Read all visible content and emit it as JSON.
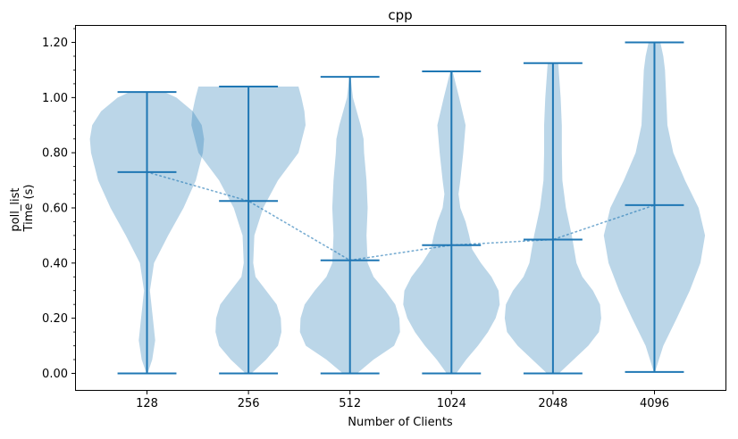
{
  "chart_data": {
    "type": "violin",
    "title": "cpp",
    "xlabel": "Number of Clients",
    "ylabel_lines": [
      "poll_list",
      "Time (s)"
    ],
    "categories": [
      "128",
      "256",
      "512",
      "1024",
      "2048",
      "4096"
    ],
    "ylim": [
      -0.06,
      1.26
    ],
    "yticks": [
      0.0,
      0.2,
      0.4,
      0.6,
      0.8,
      1.0,
      1.2
    ],
    "ytick_labels": [
      "0.00",
      "0.20",
      "0.40",
      "0.60",
      "0.80",
      "1.00",
      "1.20"
    ],
    "grid": false,
    "legend": "none",
    "colors": {
      "body": "#1f77b4",
      "body_alpha": 0.3,
      "lines": "#1f77b4",
      "mean_line": "#1f77b4"
    },
    "series": [
      {
        "category": "128",
        "min": 0.0,
        "max": 1.02,
        "mean": 0.73,
        "profile": [
          [
            0.0,
            0.01
          ],
          [
            0.05,
            0.09
          ],
          [
            0.12,
            0.14
          ],
          [
            0.2,
            0.1
          ],
          [
            0.3,
            0.05
          ],
          [
            0.4,
            0.12
          ],
          [
            0.5,
            0.36
          ],
          [
            0.6,
            0.62
          ],
          [
            0.7,
            0.83
          ],
          [
            0.8,
            0.95
          ],
          [
            0.85,
            0.97
          ],
          [
            0.9,
            0.93
          ],
          [
            0.95,
            0.78
          ],
          [
            1.0,
            0.5
          ],
          [
            1.02,
            0.3
          ]
        ]
      },
      {
        "category": "256",
        "min": 0.0,
        "max": 1.04,
        "mean": 0.625,
        "profile": [
          [
            0.0,
            0.05
          ],
          [
            0.05,
            0.3
          ],
          [
            0.1,
            0.5
          ],
          [
            0.15,
            0.56
          ],
          [
            0.2,
            0.55
          ],
          [
            0.25,
            0.48
          ],
          [
            0.3,
            0.3
          ],
          [
            0.35,
            0.12
          ],
          [
            0.4,
            0.08
          ],
          [
            0.5,
            0.1
          ],
          [
            0.6,
            0.25
          ],
          [
            0.7,
            0.5
          ],
          [
            0.8,
            0.85
          ],
          [
            0.9,
            0.97
          ],
          [
            0.95,
            0.95
          ],
          [
            1.0,
            0.9
          ],
          [
            1.04,
            0.85
          ]
        ]
      },
      {
        "category": "512",
        "min": 0.0,
        "max": 1.075,
        "mean": 0.41,
        "profile": [
          [
            0.0,
            0.12
          ],
          [
            0.05,
            0.4
          ],
          [
            0.1,
            0.75
          ],
          [
            0.15,
            0.85
          ],
          [
            0.2,
            0.84
          ],
          [
            0.25,
            0.77
          ],
          [
            0.3,
            0.6
          ],
          [
            0.35,
            0.4
          ],
          [
            0.4,
            0.3
          ],
          [
            0.5,
            0.28
          ],
          [
            0.6,
            0.3
          ],
          [
            0.7,
            0.28
          ],
          [
            0.8,
            0.24
          ],
          [
            0.85,
            0.23
          ],
          [
            0.9,
            0.18
          ],
          [
            1.0,
            0.05
          ],
          [
            1.075,
            0.01
          ]
        ]
      },
      {
        "category": "1024",
        "min": 0.0,
        "max": 1.095,
        "mean": 0.465,
        "profile": [
          [
            0.0,
            0.08
          ],
          [
            0.05,
            0.25
          ],
          [
            0.1,
            0.45
          ],
          [
            0.15,
            0.62
          ],
          [
            0.2,
            0.75
          ],
          [
            0.25,
            0.82
          ],
          [
            0.3,
            0.8
          ],
          [
            0.35,
            0.68
          ],
          [
            0.4,
            0.5
          ],
          [
            0.45,
            0.35
          ],
          [
            0.5,
            0.3
          ],
          [
            0.55,
            0.24
          ],
          [
            0.6,
            0.15
          ],
          [
            0.65,
            0.12
          ],
          [
            0.7,
            0.15
          ],
          [
            0.8,
            0.2
          ],
          [
            0.9,
            0.24
          ],
          [
            1.0,
            0.13
          ],
          [
            1.095,
            0.02
          ]
        ]
      },
      {
        "category": "2048",
        "min": 0.0,
        "max": 1.125,
        "mean": 0.485,
        "profile": [
          [
            0.0,
            0.1
          ],
          [
            0.05,
            0.35
          ],
          [
            0.1,
            0.6
          ],
          [
            0.15,
            0.78
          ],
          [
            0.2,
            0.82
          ],
          [
            0.25,
            0.8
          ],
          [
            0.3,
            0.68
          ],
          [
            0.35,
            0.5
          ],
          [
            0.4,
            0.4
          ],
          [
            0.5,
            0.32
          ],
          [
            0.6,
            0.22
          ],
          [
            0.7,
            0.16
          ],
          [
            0.8,
            0.15
          ],
          [
            0.9,
            0.15
          ],
          [
            1.0,
            0.13
          ],
          [
            1.125,
            0.09
          ]
        ]
      },
      {
        "category": "4096",
        "min": 0.005,
        "max": 1.2,
        "mean": 0.61,
        "profile": [
          [
            0.005,
            0.01
          ],
          [
            0.1,
            0.15
          ],
          [
            0.2,
            0.38
          ],
          [
            0.3,
            0.6
          ],
          [
            0.4,
            0.78
          ],
          [
            0.5,
            0.86
          ],
          [
            0.6,
            0.75
          ],
          [
            0.7,
            0.52
          ],
          [
            0.8,
            0.32
          ],
          [
            0.9,
            0.22
          ],
          [
            1.0,
            0.2
          ],
          [
            1.1,
            0.18
          ],
          [
            1.15,
            0.15
          ],
          [
            1.2,
            0.1
          ]
        ]
      }
    ]
  }
}
